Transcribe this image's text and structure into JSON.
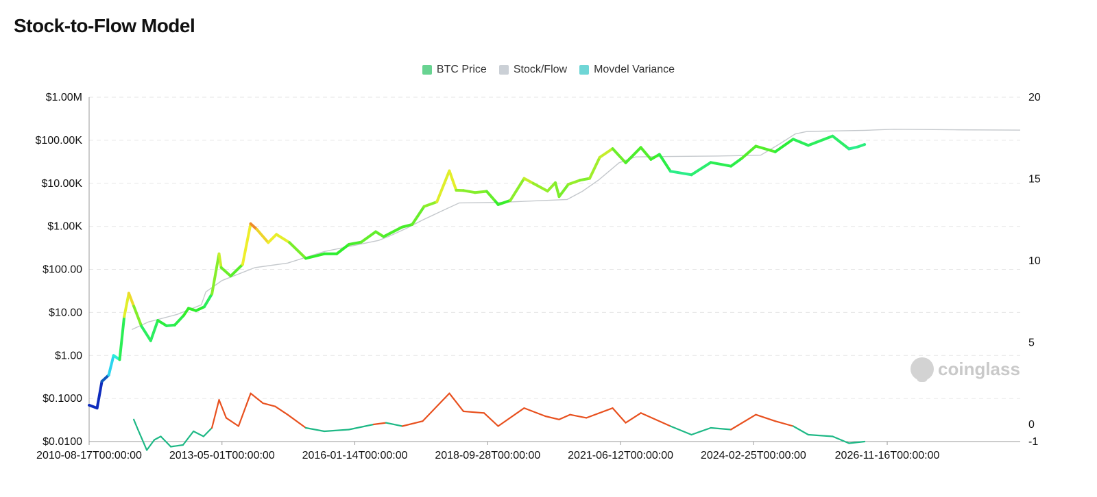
{
  "page": {
    "title": "Stock-to-Flow Model"
  },
  "legend": [
    {
      "name": "BTC Price",
      "color": "#68d391"
    },
    {
      "name": "Stock/Flow",
      "color": "#cbd0d6"
    },
    {
      "name": "Movdel Variance",
      "color": "#6fd6d6"
    }
  ],
  "watermark": {
    "text": "coinglass",
    "icon": "coinglass-logo-icon"
  },
  "chart_data": {
    "type": "line",
    "title": "Stock-to-Flow Model",
    "x_axis": {
      "type": "date",
      "range": [
        "2010-08-17",
        "2029-08-01"
      ],
      "tick_labels": [
        "2010-08-17T00:00:00",
        "2013-05-01T00:00:00",
        "2016-01-14T00:00:00",
        "2018-09-28T00:00:00",
        "2021-06-12T00:00:00",
        "2024-02-25T00:00:00",
        "2026-11-16T00:00:00"
      ],
      "ticks": [
        "2010-08-17",
        "2013-05-01",
        "2016-01-14",
        "2018-09-28",
        "2021-06-12",
        "2024-02-25",
        "2026-11-16"
      ]
    },
    "y_axis_left": {
      "scale": "log",
      "range": [
        0.01,
        1000000
      ],
      "tick_labels": [
        "$0.0100",
        "$0.1000",
        "$1.00",
        "$10.00",
        "$100.00",
        "$1.00K",
        "$10.00K",
        "$100.00K",
        "$1.00M"
      ],
      "ticks": [
        0.01,
        0.1,
        1,
        10,
        100,
        1000,
        10000,
        100000,
        1000000
      ]
    },
    "y_axis_right": {
      "scale": "linear",
      "range": [
        -1,
        20
      ],
      "tick_labels": [
        "-1",
        "0",
        "5",
        "10",
        "15",
        "20"
      ],
      "ticks": [
        -1,
        0,
        5,
        10,
        15,
        20
      ]
    },
    "grid": true,
    "legend_position": "top-center",
    "series": [
      {
        "name": "BTC Price",
        "axis": "left",
        "color_note": "colored by model variance (rainbow)",
        "points": [
          [
            "2010-08-17",
            0.07
          ],
          [
            "2010-10-15",
            0.06
          ],
          [
            "2010-11-20",
            0.25
          ],
          [
            "2011-01-10",
            0.35
          ],
          [
            "2011-02-15",
            1.0
          ],
          [
            "2011-04-01",
            0.8
          ],
          [
            "2011-05-05",
            8.0
          ],
          [
            "2011-06-08",
            28.0
          ],
          [
            "2011-07-15",
            14.0
          ],
          [
            "2011-09-10",
            4.8
          ],
          [
            "2011-11-18",
            2.2
          ],
          [
            "2012-01-10",
            6.5
          ],
          [
            "2012-03-15",
            4.9
          ],
          [
            "2012-05-15",
            5.1
          ],
          [
            "2012-07-20",
            8.5
          ],
          [
            "2012-08-25",
            12.5
          ],
          [
            "2012-10-20",
            11.0
          ],
          [
            "2012-12-20",
            13.5
          ],
          [
            "2013-02-15",
            27.0
          ],
          [
            "2013-04-09",
            230.0
          ],
          [
            "2013-04-25",
            110.0
          ],
          [
            "2013-07-05",
            70.0
          ],
          [
            "2013-10-01",
            130.0
          ],
          [
            "2013-11-30",
            1150.0
          ],
          [
            "2014-01-15",
            850.0
          ],
          [
            "2014-04-10",
            420.0
          ],
          [
            "2014-06-10",
            650.0
          ],
          [
            "2014-09-15",
            420.0
          ],
          [
            "2015-01-14",
            180.0
          ],
          [
            "2015-06-01",
            230.0
          ],
          [
            "2015-09-01",
            230.0
          ],
          [
            "2015-12-01",
            380.0
          ],
          [
            "2016-03-01",
            430.0
          ],
          [
            "2016-06-17",
            750.0
          ],
          [
            "2016-08-15",
            575.0
          ],
          [
            "2016-12-31",
            960.0
          ],
          [
            "2017-03-15",
            1100.0
          ],
          [
            "2017-06-12",
            2900.0
          ],
          [
            "2017-09-15",
            3700.0
          ],
          [
            "2017-12-17",
            19500.0
          ],
          [
            "2018-02-06",
            6900.0
          ],
          [
            "2018-04-01",
            6800.0
          ],
          [
            "2018-06-25",
            6100.0
          ],
          [
            "2018-09-20",
            6500.0
          ],
          [
            "2018-11-25",
            3800.0
          ],
          [
            "2018-12-15",
            3200.0
          ],
          [
            "2019-03-15",
            4000.0
          ],
          [
            "2019-06-26",
            13000.0
          ],
          [
            "2019-09-01",
            10000.0
          ],
          [
            "2019-12-17",
            6600.0
          ],
          [
            "2020-02-13",
            10300.0
          ],
          [
            "2020-03-12",
            4900.0
          ],
          [
            "2020-05-20",
            9500.0
          ],
          [
            "2020-08-15",
            11800.0
          ],
          [
            "2020-10-25",
            13000.0
          ],
          [
            "2021-01-08",
            40000.0
          ],
          [
            "2021-04-14",
            64000.0
          ],
          [
            "2021-07-20",
            30000.0
          ],
          [
            "2021-11-10",
            68000.0
          ],
          [
            "2022-01-24",
            36000.0
          ],
          [
            "2022-03-28",
            47000.0
          ],
          [
            "2022-06-18",
            19000.0
          ],
          [
            "2022-11-21",
            15800.0
          ],
          [
            "2023-04-14",
            30500.0
          ],
          [
            "2023-09-11",
            25000.0
          ],
          [
            "2023-12-01",
            38000.0
          ],
          [
            "2024-03-14",
            73000.0
          ],
          [
            "2024-08-05",
            54000.0
          ],
          [
            "2024-12-17",
            106000.0
          ],
          [
            "2025-04-08",
            76000.0
          ],
          [
            "2025-10-06",
            125000.0
          ],
          [
            "2026-02-05",
            63000.0
          ],
          [
            "2026-04-10",
            70000.0
          ],
          [
            "2026-06-01",
            80000.0
          ]
        ]
      },
      {
        "name": "Stock/Flow",
        "axis": "left",
        "color": "#c4c8cc",
        "points": [
          [
            "2011-07-01",
            4.0
          ],
          [
            "2011-11-01",
            6.0
          ],
          [
            "2012-06-01",
            9.0
          ],
          [
            "2012-11-28",
            15.0
          ],
          [
            "2013-01-01",
            30.0
          ],
          [
            "2013-05-01",
            55.0
          ],
          [
            "2014-01-01",
            110.0
          ],
          [
            "2014-09-01",
            140.0
          ],
          [
            "2015-06-01",
            260.0
          ],
          [
            "2016-07-09",
            470.0
          ],
          [
            "2016-10-01",
            600.0
          ],
          [
            "2017-02-01",
            900.0
          ],
          [
            "2017-06-01",
            1400.0
          ],
          [
            "2017-12-01",
            2600.0
          ],
          [
            "2018-03-01",
            3500.0
          ],
          [
            "2019-01-01",
            3600.0
          ],
          [
            "2020-05-11",
            4200.0
          ],
          [
            "2020-09-01",
            6500.0
          ],
          [
            "2021-01-01",
            12000.0
          ],
          [
            "2021-06-01",
            30000.0
          ],
          [
            "2021-10-01",
            41000.0
          ],
          [
            "2022-06-01",
            42000.0
          ],
          [
            "2023-06-01",
            43000.0
          ],
          [
            "2024-04-19",
            45000.0
          ],
          [
            "2024-09-01",
            80000.0
          ],
          [
            "2025-01-01",
            140000.0
          ],
          [
            "2025-04-01",
            160000.0
          ],
          [
            "2026-06-01",
            170000.0
          ],
          [
            "2027-01-01",
            180000.0
          ],
          [
            "2028-04-01",
            175000.0
          ],
          [
            "2029-08-01",
            172000.0
          ]
        ]
      },
      {
        "name": "Movdel Variance",
        "axis": "right",
        "color_note": "red-orange when positive, green when negative",
        "points": [
          [
            "2011-07-15",
            0.3
          ],
          [
            "2011-08-15",
            -0.3
          ],
          [
            "2011-10-20",
            -1.5
          ],
          [
            "2011-12-15",
            -0.9
          ],
          [
            "2012-02-01",
            -0.7
          ],
          [
            "2012-04-15",
            -1.3
          ],
          [
            "2012-07-15",
            -1.2
          ],
          [
            "2012-10-01",
            -0.4
          ],
          [
            "2012-12-15",
            -0.7
          ],
          [
            "2013-02-15",
            -0.2
          ],
          [
            "2013-04-09",
            1.5
          ],
          [
            "2013-06-01",
            0.4
          ],
          [
            "2013-09-01",
            -0.1
          ],
          [
            "2013-11-30",
            1.9
          ],
          [
            "2014-03-01",
            1.3
          ],
          [
            "2014-06-01",
            1.1
          ],
          [
            "2014-09-01",
            0.6
          ],
          [
            "2015-01-14",
            -0.2
          ],
          [
            "2015-06-01",
            -0.4
          ],
          [
            "2015-12-01",
            -0.3
          ],
          [
            "2016-06-01",
            0.0
          ],
          [
            "2016-09-01",
            0.1
          ],
          [
            "2017-01-01",
            -0.1
          ],
          [
            "2017-06-01",
            0.2
          ],
          [
            "2017-12-17",
            1.9
          ],
          [
            "2018-04-01",
            0.8
          ],
          [
            "2018-09-01",
            0.7
          ],
          [
            "2018-12-15",
            -0.1
          ],
          [
            "2019-06-26",
            1.0
          ],
          [
            "2019-12-01",
            0.5
          ],
          [
            "2020-03-12",
            0.3
          ],
          [
            "2020-06-01",
            0.6
          ],
          [
            "2020-10-01",
            0.4
          ],
          [
            "2021-04-14",
            1.0
          ],
          [
            "2021-07-20",
            0.1
          ],
          [
            "2021-11-10",
            0.7
          ],
          [
            "2022-06-18",
            -0.1
          ],
          [
            "2022-11-21",
            -0.6
          ],
          [
            "2023-04-14",
            -0.2
          ],
          [
            "2023-09-11",
            -0.3
          ],
          [
            "2024-03-14",
            0.6
          ],
          [
            "2024-08-05",
            0.2
          ],
          [
            "2024-12-17",
            -0.1
          ],
          [
            "2025-04-08",
            -0.6
          ],
          [
            "2025-10-06",
            -0.7
          ],
          [
            "2026-02-05",
            -1.1
          ],
          [
            "2026-06-01",
            -1.0
          ]
        ]
      }
    ]
  }
}
